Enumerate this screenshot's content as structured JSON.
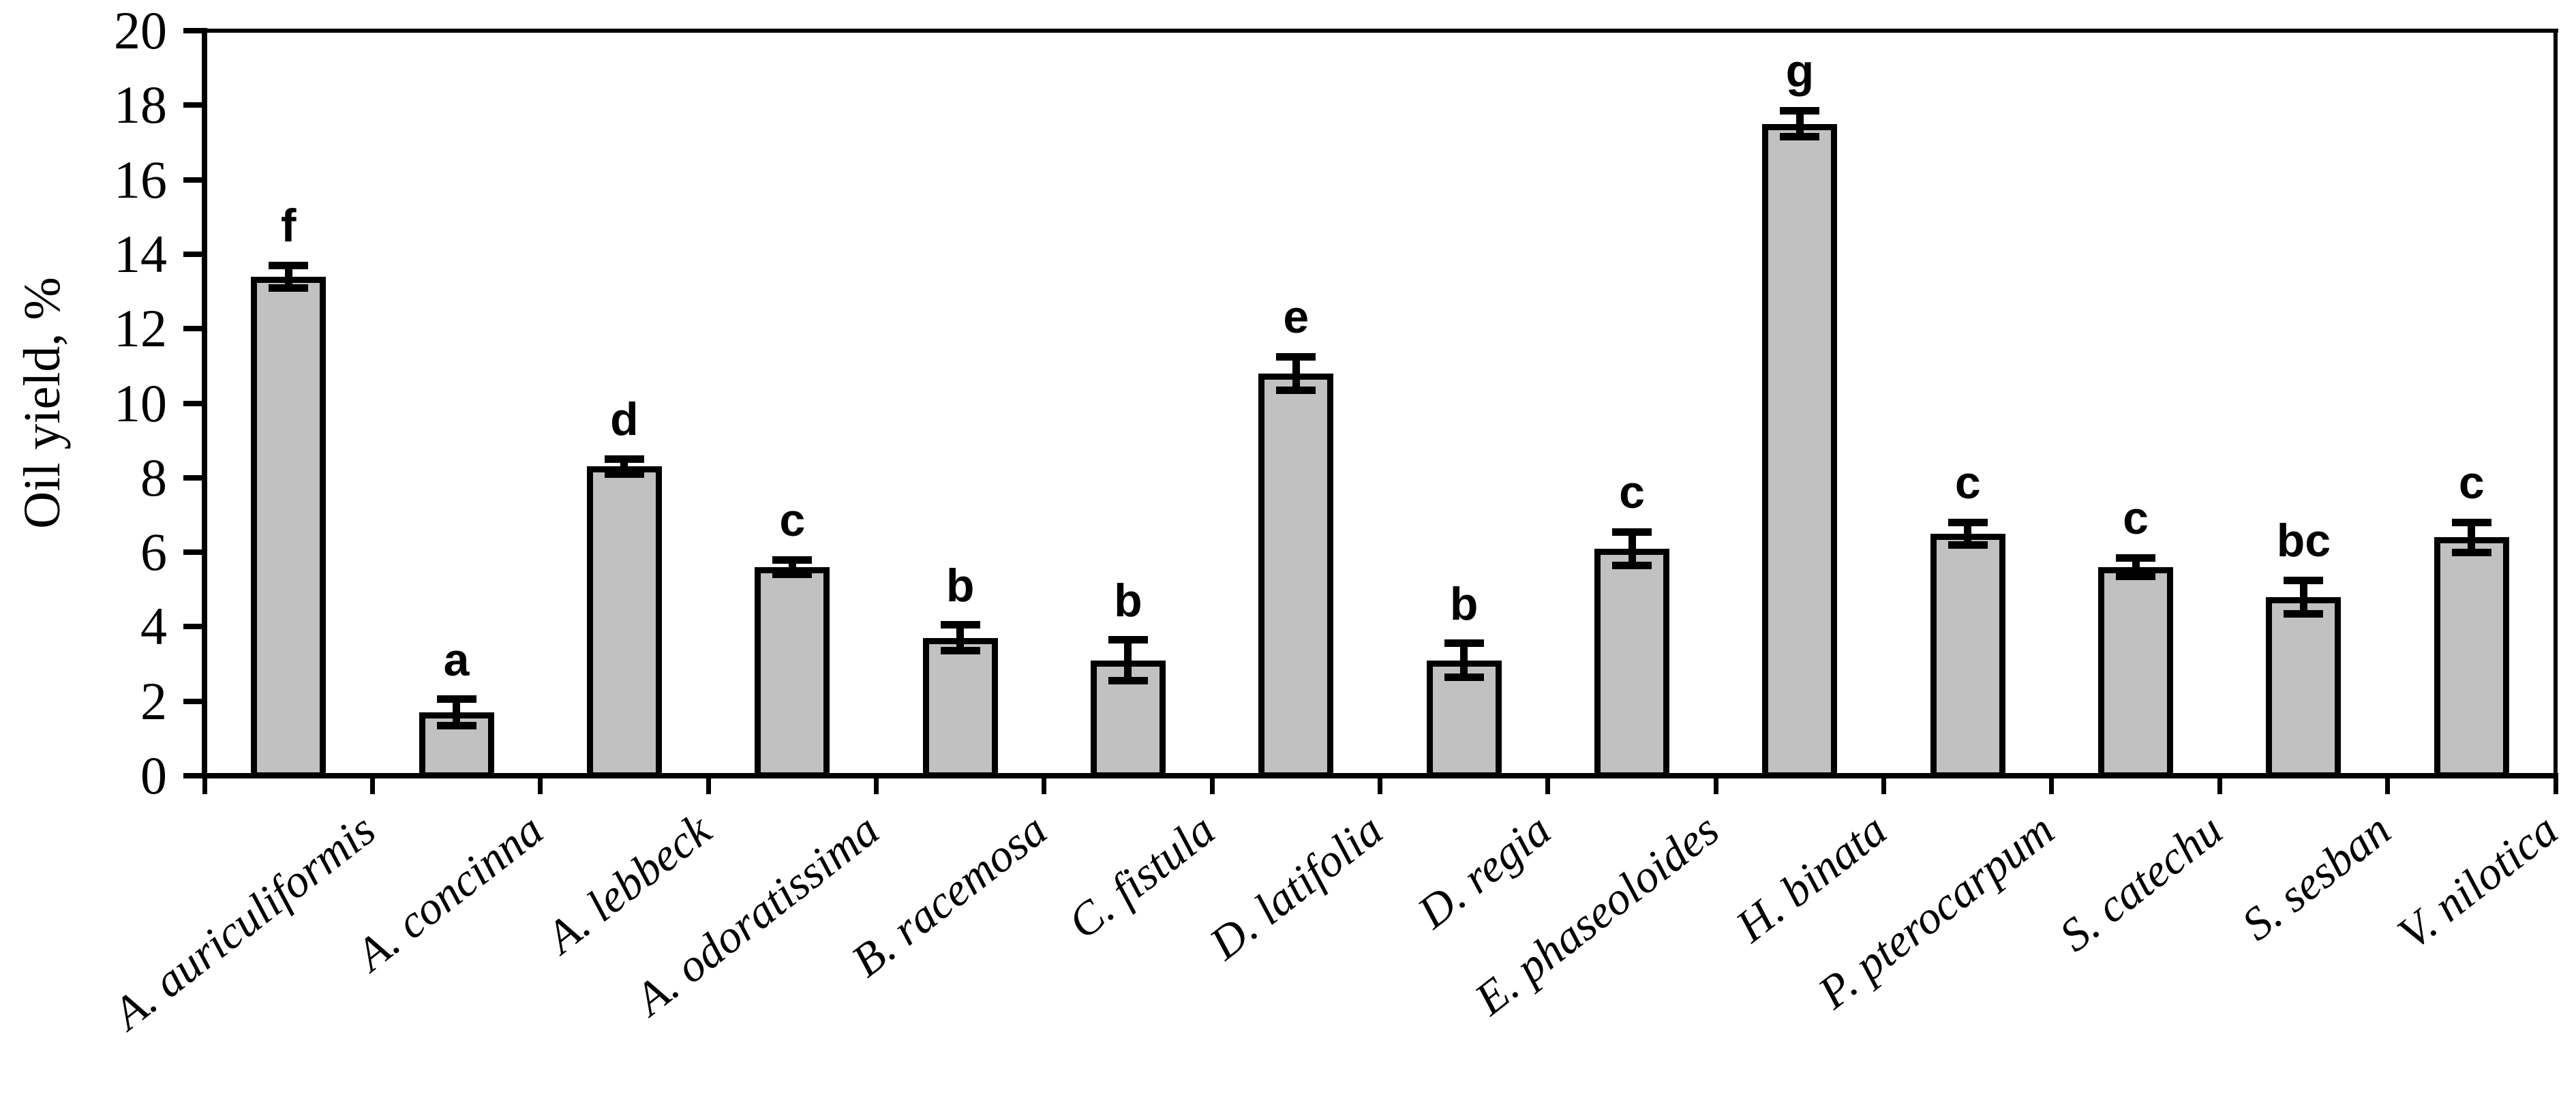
{
  "figure": {
    "background": "#ffffff",
    "kind": "scientific bar chart with error bars and significance letters"
  },
  "chart_data": {
    "type": "bar",
    "title": "",
    "xlabel": "",
    "ylabel": "Oil yield, %",
    "ylim": [
      0,
      20
    ],
    "ytick_step": 2,
    "yticks": [
      0,
      2,
      4,
      6,
      8,
      10,
      12,
      14,
      16,
      18,
      20
    ],
    "grid": false,
    "legend": "none",
    "bar_fill": "#c1c1c1",
    "bar_border_color": "#000000",
    "error_bar_color": "#000000",
    "x_label_style": "italic, rotated ~38deg",
    "categories": [
      "A. auriculiformis",
      "A. concinna",
      "A. lebbeck",
      "A. odoratissima",
      "B. racemosa",
      "C. fistula",
      "D. latifolia",
      "D. regia",
      "E. phaseoloides",
      "H. binata",
      "P. pterocarpum",
      "S. catechu",
      "S. sesban",
      "V. nilotica"
    ],
    "values": [
      13.4,
      1.7,
      8.3,
      5.6,
      3.7,
      3.1,
      10.8,
      3.1,
      6.1,
      17.5,
      6.5,
      5.6,
      4.8,
      6.4
    ],
    "errors": [
      0.3,
      0.35,
      0.2,
      0.2,
      0.35,
      0.55,
      0.45,
      0.45,
      0.45,
      0.35,
      0.3,
      0.25,
      0.45,
      0.4
    ],
    "sig_letters": [
      "f",
      "a",
      "d",
      "c",
      "b",
      "b",
      "e",
      "b",
      "c",
      "g",
      "c",
      "c",
      "bc",
      "c"
    ]
  }
}
